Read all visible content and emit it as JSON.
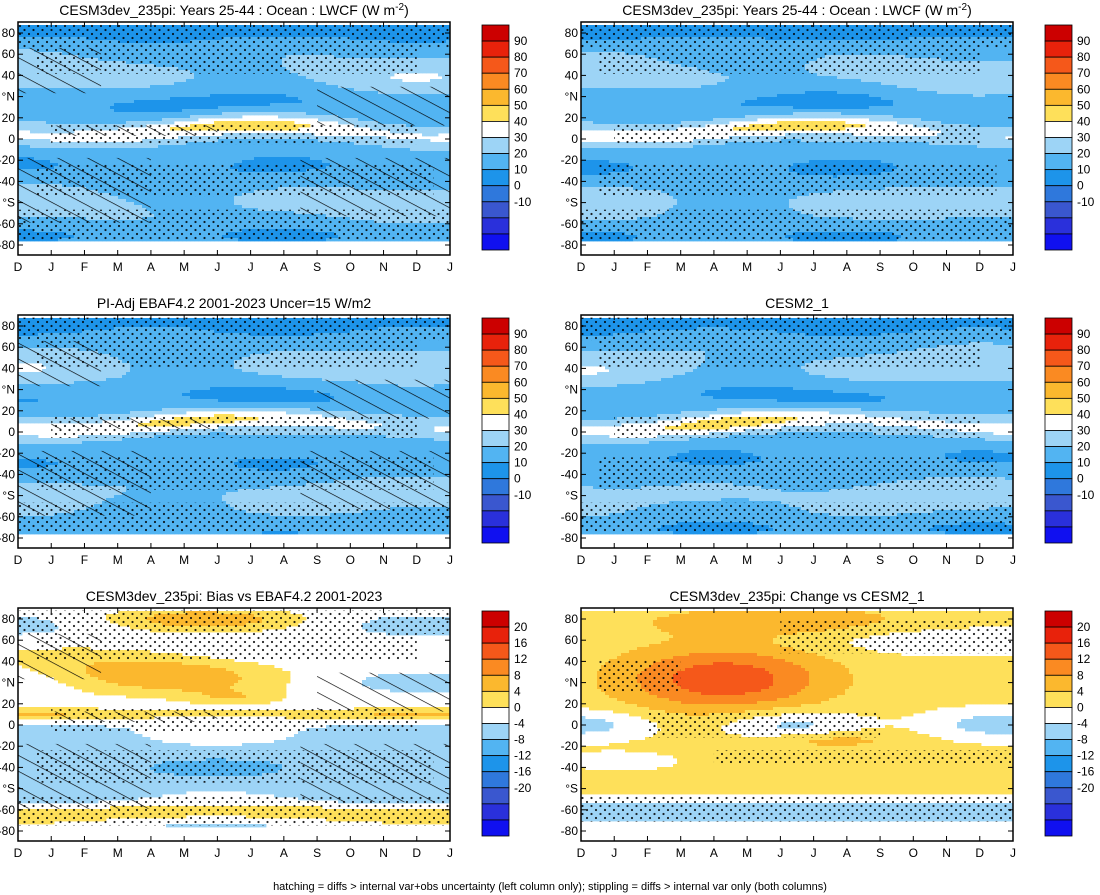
{
  "footnote": "hatching = diffs > internal var+obs uncertainty (left column only); stippling = diffs > internal var only (both columns)",
  "chart_data": [
    {
      "id": "p1",
      "type": "heatmap",
      "title": "CESM3dev_235pi: Years 25-44 : Ocean : LWCF (W m",
      "title_sup": "-2",
      "title_end": ")",
      "x": [
        "D",
        "J",
        "F",
        "M",
        "A",
        "M",
        "J",
        "J",
        "A",
        "S",
        "O",
        "N",
        "D",
        "J"
      ],
      "ylabels": [
        "80",
        "60",
        "40",
        "°N",
        "20",
        "0",
        "-20",
        "-40",
        "°S",
        "-60",
        "-80"
      ],
      "ylim": [
        -90,
        90
      ],
      "colorbar": {
        "levels": [
          "90",
          "80",
          "70",
          "60",
          "50",
          "40",
          "30",
          "20",
          "10",
          "0",
          "-10"
        ],
        "colors": [
          "#cc0000",
          "#e8220b",
          "#f5581a",
          "#fa8a22",
          "#fbb82e",
          "#fee05a",
          "#ffffff",
          "#9dd4f6",
          "#52b4f2",
          "#1d94ea",
          "#2f78dc",
          "#3a57cf",
          "#2a30db",
          "#1010f0"
        ]
      },
      "field": "abs",
      "shift": 0,
      "hatch": true
    },
    {
      "id": "p2",
      "type": "heatmap",
      "title": "CESM3dev_235pi: Years 25-44 : Ocean : LWCF (W m",
      "title_sup": "-2",
      "title_end": ")",
      "x": [
        "D",
        "J",
        "F",
        "M",
        "A",
        "M",
        "J",
        "J",
        "A",
        "S",
        "O",
        "N",
        "D",
        "J"
      ],
      "ylabels": [
        "80",
        "60",
        "40",
        "°N",
        "20",
        "0",
        "-20",
        "-40",
        "°S",
        "-60",
        "-80"
      ],
      "ylim": [
        -90,
        90
      ],
      "colorbar": {
        "levels": [
          "90",
          "80",
          "70",
          "60",
          "50",
          "40",
          "30",
          "20",
          "10",
          "0",
          "-10"
        ],
        "colors": [
          "#cc0000",
          "#e8220b",
          "#f5581a",
          "#fa8a22",
          "#fbb82e",
          "#fee05a",
          "#ffffff",
          "#9dd4f6",
          "#52b4f2",
          "#1d94ea",
          "#2f78dc",
          "#3a57cf",
          "#2a30db",
          "#1010f0"
        ]
      },
      "field": "abs",
      "shift": 1,
      "hatch": false
    },
    {
      "id": "p3",
      "type": "heatmap",
      "title": "PI-Adj EBAF4.2 2001-2023 Uncer=15 W/m2",
      "x": [
        "D",
        "J",
        "F",
        "M",
        "A",
        "M",
        "J",
        "J",
        "A",
        "S",
        "O",
        "N",
        "D",
        "J"
      ],
      "ylabels": [
        "80",
        "60",
        "40",
        "°N",
        "20",
        "0",
        "-20",
        "-40",
        "°S",
        "-60",
        "-80"
      ],
      "ylim": [
        -90,
        90
      ],
      "colorbar": {
        "levels": [
          "90",
          "80",
          "70",
          "60",
          "50",
          "40",
          "30",
          "20",
          "10",
          "0",
          "-10"
        ],
        "colors": [
          "#cc0000",
          "#e8220b",
          "#f5581a",
          "#fa8a22",
          "#fbb82e",
          "#fee05a",
          "#ffffff",
          "#9dd4f6",
          "#52b4f2",
          "#1d94ea",
          "#2f78dc",
          "#3a57cf",
          "#2a30db",
          "#1010f0"
        ]
      },
      "field": "abs",
      "shift": 2,
      "hatch": true
    },
    {
      "id": "p4",
      "type": "heatmap",
      "title": "CESM2_1",
      "x": [
        "D",
        "J",
        "F",
        "M",
        "A",
        "M",
        "J",
        "J",
        "A",
        "S",
        "O",
        "N",
        "D",
        "J"
      ],
      "ylabels": [
        "80",
        "60",
        "40",
        "°N",
        "20",
        "0",
        "-20",
        "-40",
        "°S",
        "-60",
        "-80"
      ],
      "ylim": [
        -90,
        90
      ],
      "colorbar": {
        "levels": [
          "90",
          "80",
          "70",
          "60",
          "50",
          "40",
          "30",
          "20",
          "10",
          "0",
          "-10"
        ],
        "colors": [
          "#cc0000",
          "#e8220b",
          "#f5581a",
          "#fa8a22",
          "#fbb82e",
          "#fee05a",
          "#ffffff",
          "#9dd4f6",
          "#52b4f2",
          "#1d94ea",
          "#2f78dc",
          "#3a57cf",
          "#2a30db",
          "#1010f0"
        ]
      },
      "field": "abs",
      "shift": 3,
      "hatch": false
    },
    {
      "id": "p5",
      "type": "heatmap",
      "title": "CESM3dev_235pi: Bias vs EBAF4.2 2001-2023",
      "x": [
        "D",
        "J",
        "F",
        "M",
        "A",
        "M",
        "J",
        "J",
        "A",
        "S",
        "O",
        "N",
        "D",
        "J"
      ],
      "ylabels": [
        "80",
        "60",
        "40",
        "°N",
        "20",
        "0",
        "-20",
        "-40",
        "°S",
        "-60",
        "-80"
      ],
      "ylim": [
        -90,
        90
      ],
      "colorbar": {
        "levels": [
          "20",
          "16",
          "12",
          "8",
          "4",
          "0",
          "-4",
          "-8",
          "-12",
          "-16",
          "-20"
        ],
        "colors": [
          "#cc0000",
          "#e8220b",
          "#f5581a",
          "#fa8a22",
          "#fbb82e",
          "#fee05a",
          "#ffffff",
          "#9dd4f6",
          "#52b4f2",
          "#1d94ea",
          "#2f78dc",
          "#3a57cf",
          "#2a30db",
          "#1010f0"
        ]
      },
      "field": "bias",
      "shift": 0,
      "hatch": true
    },
    {
      "id": "p6",
      "type": "heatmap",
      "title": "CESM3dev_235pi: Change vs CESM2_1",
      "x": [
        "D",
        "J",
        "F",
        "M",
        "A",
        "M",
        "J",
        "J",
        "A",
        "S",
        "O",
        "N",
        "D",
        "J"
      ],
      "ylabels": [
        "80",
        "60",
        "40",
        "°N",
        "20",
        "0",
        "-20",
        "-40",
        "°S",
        "-60",
        "-80"
      ],
      "ylim": [
        -90,
        90
      ],
      "colorbar": {
        "levels": [
          "20",
          "16",
          "12",
          "8",
          "4",
          "0",
          "-4",
          "-8",
          "-12",
          "-16",
          "-20"
        ],
        "colors": [
          "#cc0000",
          "#e8220b",
          "#f5581a",
          "#fa8a22",
          "#fbb82e",
          "#fee05a",
          "#ffffff",
          "#9dd4f6",
          "#52b4f2",
          "#1d94ea",
          "#2f78dc",
          "#3a57cf",
          "#2a30db",
          "#1010f0"
        ]
      },
      "field": "change",
      "shift": 0,
      "hatch": false
    }
  ]
}
